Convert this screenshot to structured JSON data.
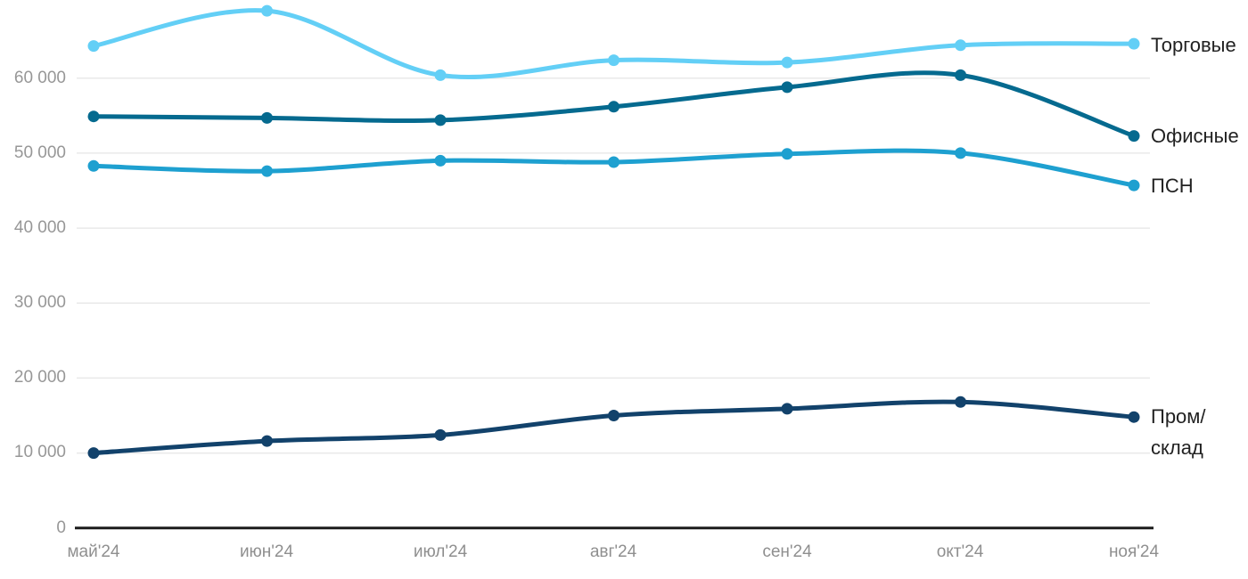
{
  "chart_data": {
    "type": "line",
    "title": "",
    "xlabel": "",
    "ylabel": "",
    "categories": [
      "май'24",
      "июн'24",
      "июл'24",
      "авг'24",
      "сен'24",
      "окт'24",
      "ноя'24"
    ],
    "series": [
      {
        "name": "Торговые",
        "color": "#63CFF6",
        "values": [
          64300,
          69000,
          60400,
          62400,
          62100,
          64400,
          64600
        ]
      },
      {
        "name": "Офисные",
        "color": "#056A8F",
        "values": [
          54900,
          54700,
          54400,
          56200,
          58800,
          60400,
          52300
        ]
      },
      {
        "name": "ПСН",
        "color": "#1EA0D0",
        "values": [
          48300,
          47600,
          49000,
          48800,
          49900,
          50000,
          45700
        ]
      },
      {
        "name": "Пром/склад",
        "color": "#12426B",
        "values": [
          10000,
          11600,
          12400,
          15000,
          15900,
          16800,
          14800
        ]
      }
    ],
    "y_ticks": [
      0,
      10000,
      20000,
      30000,
      40000,
      50000,
      60000
    ],
    "y_tick_labels": [
      "0",
      "10 000",
      "20 000",
      "30 000",
      "40 000",
      "50 000",
      "60 000"
    ],
    "ylim": [
      0,
      70000
    ],
    "grid": true,
    "smooth": true,
    "legend_position": "right-of-line-ends"
  },
  "colors": {
    "background": "#FFFFFF",
    "gridline": "#E9E9E9",
    "axis_line": "#1C1C1C",
    "tick_text": "#979797",
    "legend_text": "#212121"
  }
}
